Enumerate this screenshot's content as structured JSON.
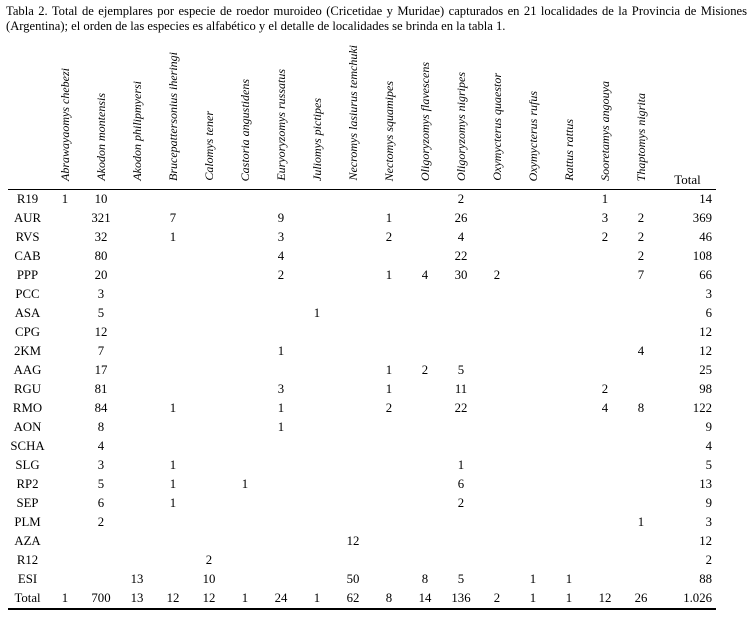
{
  "caption": "Tabla 2. Total de ejemplares por especie de roedor muroideo (Cricetidae y Muridae) capturados en 21 localidades de la Provincia de Misiones (Argentina); el orden de las especies es alfabético y el detalle de localidades se brinda en la tabla 1.",
  "table": {
    "total_column_label": "Total",
    "species": [
      "Abrawayaomys chebezi",
      "Akodon montensis",
      "Akodon philipmyersi",
      "Brucepattersonius iheringi",
      "Calomys tener",
      "Castoria angustidens",
      "Euryoryzomys russatus",
      "Juliomys pictipes",
      "Necromys lasiurus temchuki",
      "Nectomys squamipes",
      "Oligoryzomys flavescens",
      "Oligoryzomys nigripes",
      "Oxymycterus quaestor",
      "Oxymycterus rufus",
      "Rattus rattus",
      "Sooretamys angouya",
      "Thaptomys nigrita"
    ],
    "rows": [
      {
        "locality": "R19",
        "counts": [
          "1",
          "10",
          "",
          "",
          "",
          "",
          "",
          "",
          "",
          "",
          "",
          "2",
          "",
          "",
          "",
          "1",
          ""
        ],
        "total": "14"
      },
      {
        "locality": "AUR",
        "counts": [
          "",
          "321",
          "",
          "7",
          "",
          "",
          "9",
          "",
          "",
          "1",
          "",
          "26",
          "",
          "",
          "",
          "3",
          "2"
        ],
        "total": "369"
      },
      {
        "locality": "RVS",
        "counts": [
          "",
          "32",
          "",
          "1",
          "",
          "",
          "3",
          "",
          "",
          "2",
          "",
          "4",
          "",
          "",
          "",
          "2",
          "2"
        ],
        "total": "46"
      },
      {
        "locality": "CAB",
        "counts": [
          "",
          "80",
          "",
          "",
          "",
          "",
          "4",
          "",
          "",
          "",
          "",
          "22",
          "",
          "",
          "",
          "",
          "2"
        ],
        "total": "108"
      },
      {
        "locality": "PPP",
        "counts": [
          "",
          "20",
          "",
          "",
          "",
          "",
          "2",
          "",
          "",
          "1",
          "4",
          "30",
          "2",
          "",
          "",
          "",
          "7"
        ],
        "total": "66"
      },
      {
        "locality": "PCC",
        "counts": [
          "",
          "3",
          "",
          "",
          "",
          "",
          "",
          "",
          "",
          "",
          "",
          "",
          "",
          "",
          "",
          "",
          ""
        ],
        "total": "3"
      },
      {
        "locality": "ASA",
        "counts": [
          "",
          "5",
          "",
          "",
          "",
          "",
          "",
          "1",
          "",
          "",
          "",
          "",
          "",
          "",
          "",
          "",
          ""
        ],
        "total": "6"
      },
      {
        "locality": "CPG",
        "counts": [
          "",
          "12",
          "",
          "",
          "",
          "",
          "",
          "",
          "",
          "",
          "",
          "",
          "",
          "",
          "",
          "",
          ""
        ],
        "total": "12"
      },
      {
        "locality": "2KM",
        "counts": [
          "",
          "7",
          "",
          "",
          "",
          "",
          "1",
          "",
          "",
          "",
          "",
          "",
          "",
          "",
          "",
          "",
          "4"
        ],
        "total": "12"
      },
      {
        "locality": "AAG",
        "counts": [
          "",
          "17",
          "",
          "",
          "",
          "",
          "",
          "",
          "",
          "1",
          "2",
          "5",
          "",
          "",
          "",
          "",
          ""
        ],
        "total": "25"
      },
      {
        "locality": "RGU",
        "counts": [
          "",
          "81",
          "",
          "",
          "",
          "",
          "3",
          "",
          "",
          "1",
          "",
          "11",
          "",
          "",
          "",
          "2",
          ""
        ],
        "total": "98"
      },
      {
        "locality": "RMO",
        "counts": [
          "",
          "84",
          "",
          "1",
          "",
          "",
          "1",
          "",
          "",
          "2",
          "",
          "22",
          "",
          "",
          "",
          "4",
          "8"
        ],
        "total": "122"
      },
      {
        "locality": "AON",
        "counts": [
          "",
          "8",
          "",
          "",
          "",
          "",
          "1",
          "",
          "",
          "",
          "",
          "",
          "",
          "",
          "",
          "",
          ""
        ],
        "total": "9"
      },
      {
        "locality": "SCHA",
        "counts": [
          "",
          "4",
          "",
          "",
          "",
          "",
          "",
          "",
          "",
          "",
          "",
          "",
          "",
          "",
          "",
          "",
          ""
        ],
        "total": "4"
      },
      {
        "locality": "SLG",
        "counts": [
          "",
          "3",
          "",
          "1",
          "",
          "",
          "",
          "",
          "",
          "",
          "",
          "1",
          "",
          "",
          "",
          "",
          ""
        ],
        "total": "5"
      },
      {
        "locality": "RP2",
        "counts": [
          "",
          "5",
          "",
          "1",
          "",
          "1",
          "",
          "",
          "",
          "",
          "",
          "6",
          "",
          "",
          "",
          "",
          ""
        ],
        "total": "13"
      },
      {
        "locality": "SEP",
        "counts": [
          "",
          "6",
          "",
          "1",
          "",
          "",
          "",
          "",
          "",
          "",
          "",
          "2",
          "",
          "",
          "",
          "",
          ""
        ],
        "total": "9"
      },
      {
        "locality": "PLM",
        "counts": [
          "",
          "2",
          "",
          "",
          "",
          "",
          "",
          "",
          "",
          "",
          "",
          "",
          "",
          "",
          "",
          "",
          "1"
        ],
        "total": "3"
      },
      {
        "locality": "AZA",
        "counts": [
          "",
          "",
          "",
          "",
          "",
          "",
          "",
          "",
          "12",
          "",
          "",
          "",
          "",
          "",
          "",
          "",
          ""
        ],
        "total": "12"
      },
      {
        "locality": "R12",
        "counts": [
          "",
          "",
          "",
          "",
          "2",
          "",
          "",
          "",
          "",
          "",
          "",
          "",
          "",
          "",
          "",
          "",
          ""
        ],
        "total": "2"
      },
      {
        "locality": "ESI",
        "counts": [
          "",
          "",
          "13",
          "",
          "10",
          "",
          "",
          "",
          "50",
          "",
          "8",
          "5",
          "",
          "1",
          "1",
          "",
          ""
        ],
        "total": "88"
      }
    ],
    "totals_row": {
      "locality": "Total",
      "counts": [
        "1",
        "700",
        "13",
        "12",
        "12",
        "1",
        "24",
        "1",
        "62",
        "8",
        "14",
        "136",
        "2",
        "1",
        "1",
        "12",
        "26"
      ],
      "total": "1.026"
    }
  }
}
